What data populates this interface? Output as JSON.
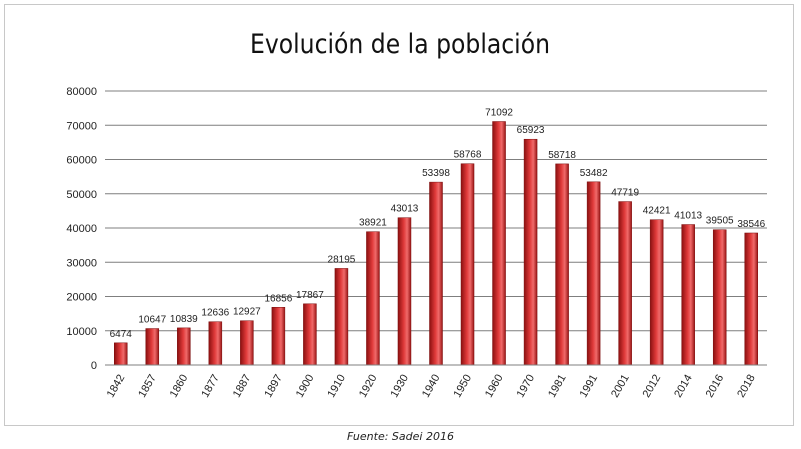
{
  "chart_data": {
    "type": "bar",
    "title": "Evolución de la población",
    "xlabel": "",
    "ylabel": "",
    "categories": [
      "1842",
      "1857",
      "1860",
      "1877",
      "1887",
      "1897",
      "1900",
      "1910",
      "1920",
      "1930",
      "1940",
      "1950",
      "1960",
      "1970",
      "1981",
      "1991",
      "2001",
      "2012",
      "2014",
      "2016",
      "2018"
    ],
    "series": [
      {
        "values": [
          6474,
          10647,
          10839,
          12636,
          12927,
          16856,
          17867,
          28195,
          38921,
          43013,
          53398,
          58768,
          71092,
          65923,
          58718,
          53482,
          47719,
          42421,
          41013,
          39505,
          38546
        ]
      }
    ],
    "data_labels": [
      "6474",
      "10647",
      "10839",
      "12636",
      "12927",
      "16856",
      "17867",
      "28195",
      "38921",
      "43013",
      "53398",
      "58768",
      "71092",
      "65923",
      "58718",
      "53482",
      "47719",
      "42421",
      "41013",
      "39505",
      "38546"
    ],
    "yticks": [
      "0",
      "10000",
      "20000",
      "30000",
      "40000",
      "50000",
      "60000",
      "70000",
      "80000"
    ],
    "ylim": [
      0,
      80000
    ],
    "grid": true,
    "legend": "none",
    "colors": {
      "bar_dark": "#8b1010",
      "bar_mid": "#e03a3a",
      "bar_light": "#f06a6a",
      "grid": "#7f7f7f"
    }
  },
  "source": "Fuente: Sadei 2016"
}
